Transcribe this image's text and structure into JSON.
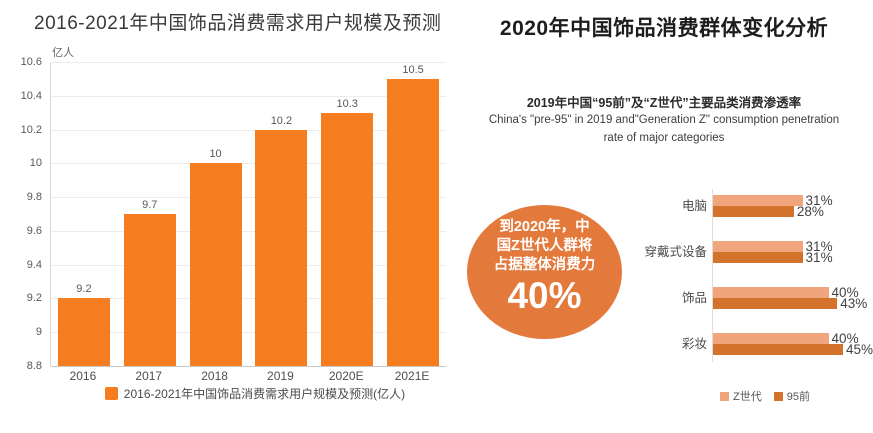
{
  "chart_data": [
    {
      "type": "bar",
      "title": "2016-2021年中国饰品消费需求用户规模及预测",
      "ylabel": "亿人",
      "xlabel": "",
      "categories": [
        "2016",
        "2017",
        "2018",
        "2019",
        "2020E",
        "2021E"
      ],
      "values": [
        9.2,
        9.7,
        10,
        10.2,
        10.3,
        10.5
      ],
      "ylim": [
        8.8,
        10.6
      ],
      "y_ticks": [
        "10.6",
        "10.4",
        "10.2",
        "10",
        "9.8",
        "9.6",
        "9.4",
        "9.2",
        "9",
        "8.8"
      ],
      "grid": true,
      "bar_color": "#F67C20",
      "legend": "2016-2021年中国饰品消费需求用户规模及预测(亿人)",
      "legend_position": "bottom"
    },
    {
      "type": "bar-horizontal",
      "title": "2019年中国“95前”及“Z世代”主要品类消费渗透率",
      "subtitle_en_line1": "China's \"pre-95\" in 2019 and\"Generation Z\" consumption penetration",
      "subtitle_en_line2": "rate of major categories",
      "categories": [
        "电脑",
        "穿戴式设备",
        "饰品",
        "彩妆"
      ],
      "series": [
        {
          "name": "Z世代",
          "color": "#F0A57D",
          "values": [
            31,
            31,
            40,
            40
          ]
        },
        {
          "name": "95前",
          "color": "#D2722B",
          "values": [
            28,
            31,
            43,
            45
          ]
        }
      ],
      "value_suffix": "%",
      "xlim": [
        0,
        45
      ],
      "grid": false,
      "legend_position": "bottom"
    }
  ],
  "right_panel": {
    "title": "2020年中国饰品消费群体变化分析",
    "highlight_circle": {
      "lines": [
        "到2020年，中",
        "国Z世代人群将",
        "占据整体消费力"
      ],
      "big_value": "40%",
      "color": "#E4793C"
    }
  }
}
